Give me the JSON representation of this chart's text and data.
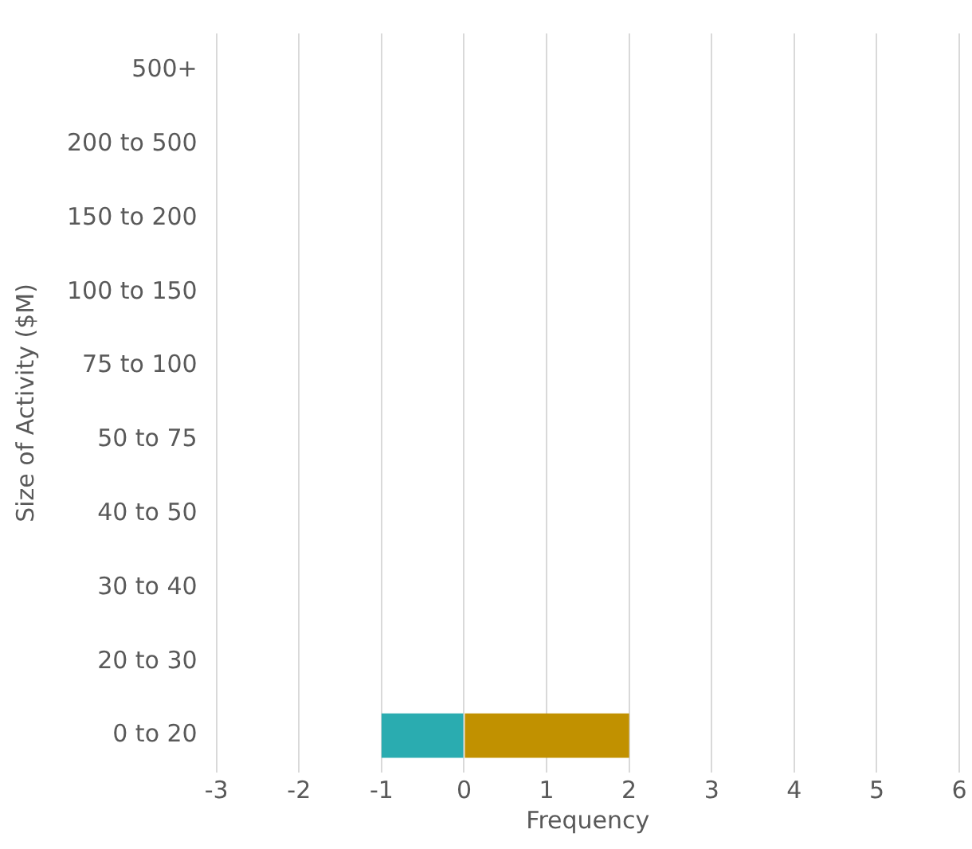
{
  "chart_data": {
    "type": "bar",
    "orientation": "horizontal",
    "stacked": true,
    "xlabel": "Frequency",
    "ylabel": "Size of Activity ($M)",
    "categories": [
      "500+",
      "200 to 500",
      "150 to 200",
      "100 to 150",
      "75 to 100",
      "50 to 75",
      "40 to 50",
      "30 to 40",
      "20 to 30",
      "0 to 20"
    ],
    "series": [
      {
        "color": "#2aacb0",
        "values": [
          0,
          0,
          0,
          0,
          0,
          0,
          0,
          0,
          0,
          -1
        ]
      },
      {
        "color": "#c19100",
        "values": [
          0,
          0,
          0,
          0,
          0,
          0,
          0,
          0,
          0,
          2
        ]
      }
    ],
    "xlim": [
      -3,
      6
    ],
    "xticks": [
      -3,
      -2,
      -1,
      0,
      1,
      2,
      3,
      4,
      5,
      6
    ],
    "grid": "x",
    "legend": false
  }
}
